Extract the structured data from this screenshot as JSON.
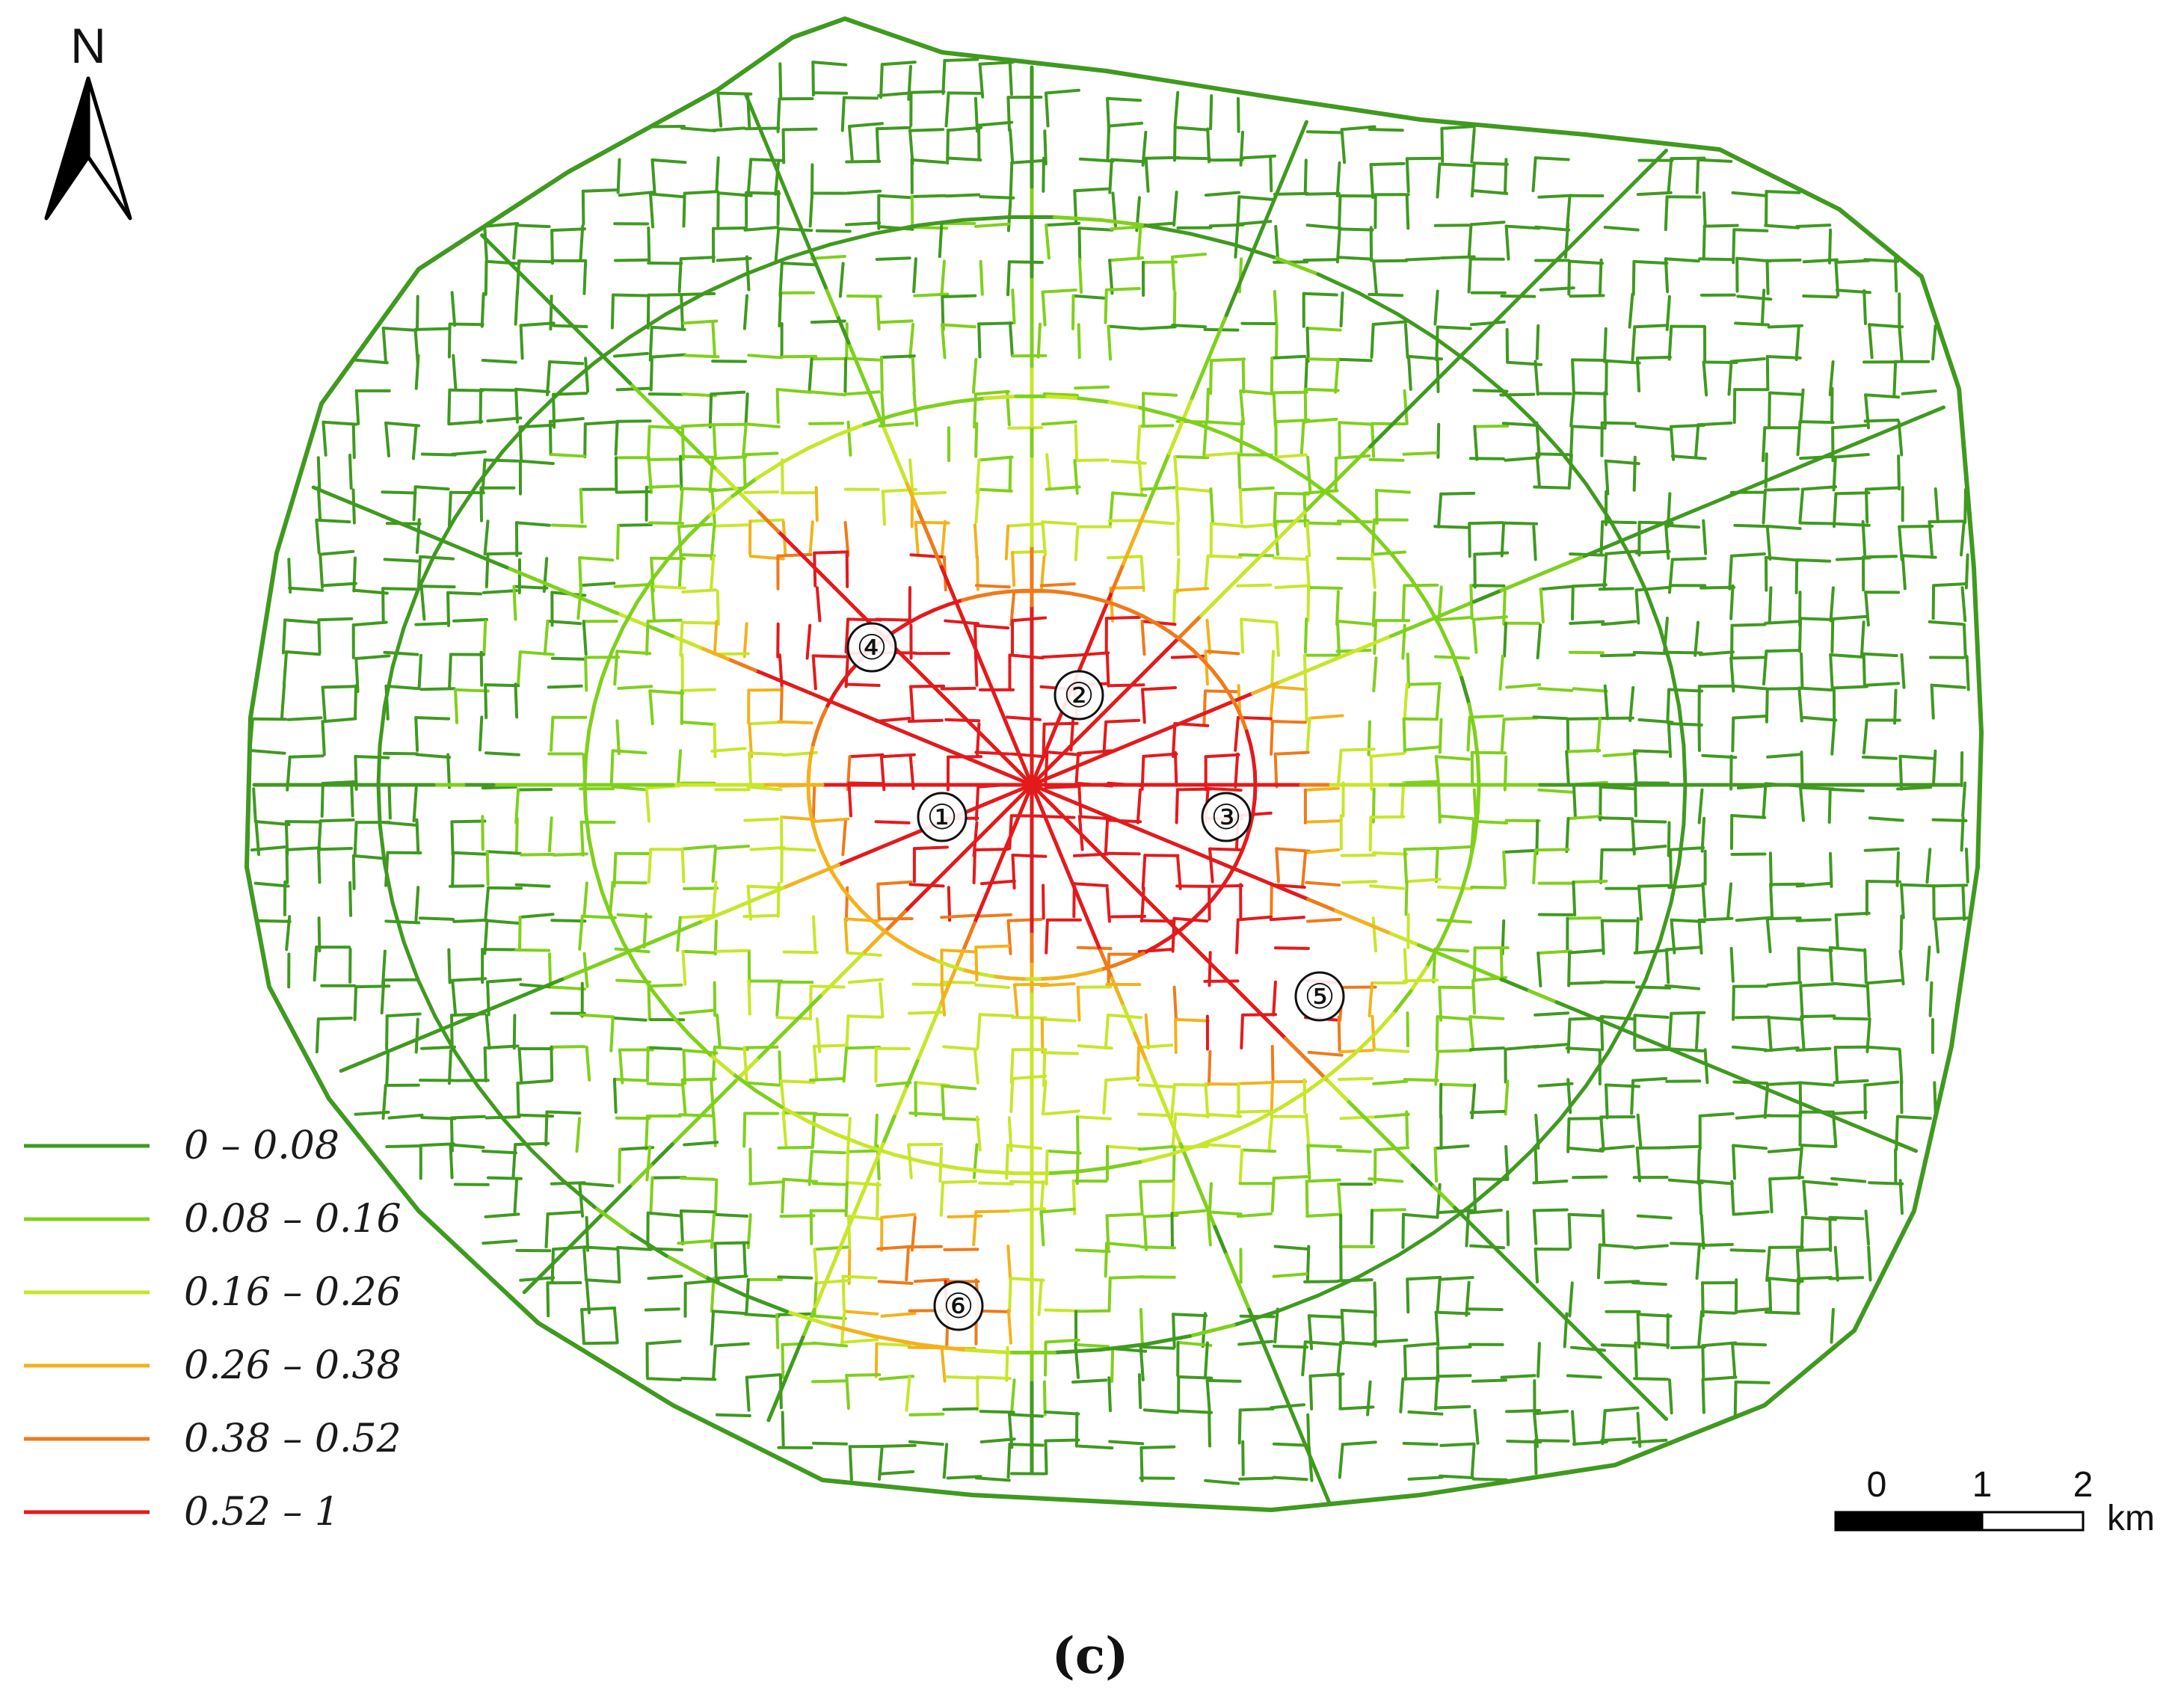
{
  "north_arrow": {
    "label": "N"
  },
  "legend": {
    "items": [
      {
        "label": "0 – 0.08",
        "color": "#3f9a1f"
      },
      {
        "label": "0.08 – 0.16",
        "color": "#7fd01c"
      },
      {
        "label": "0.16 – 0.26",
        "color": "#c8e62a"
      },
      {
        "label": "0.26 – 0.38",
        "color": "#f2b21d"
      },
      {
        "label": "0.38 – 0.52",
        "color": "#ef7a1a"
      },
      {
        "label": "0.52 – 1",
        "color": "#e31a1c"
      }
    ]
  },
  "scale_bar": {
    "ticks": [
      "0",
      "1",
      "2"
    ],
    "unit": "km"
  },
  "markers": [
    {
      "label": "①"
    },
    {
      "label": "②"
    },
    {
      "label": "③"
    },
    {
      "label": "④"
    },
    {
      "label": "⑤"
    },
    {
      "label": "⑥"
    }
  ],
  "caption": "(c)"
}
